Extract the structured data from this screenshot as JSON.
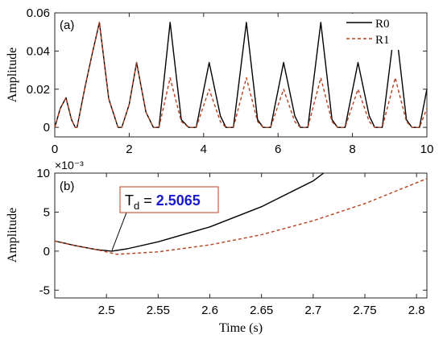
{
  "chart_data": [
    {
      "panel_label": "(a)",
      "type": "line",
      "xlabel": "",
      "ylabel": "Amplitude",
      "xlim": [
        0,
        10
      ],
      "ylim": [
        -0.005,
        0.06
      ],
      "xticks": [
        "0",
        "2",
        "4",
        "6",
        "8",
        "10"
      ],
      "yticks": [
        "0",
        "0.02",
        "0.04",
        "0.06"
      ],
      "legend": {
        "position": "top-right",
        "entries": [
          "R0",
          "R1"
        ]
      },
      "series": [
        {
          "name": "R0",
          "color": "#000000",
          "style": "solid",
          "x": [
            0,
            0.15,
            0.3,
            0.45,
            0.55,
            0.6,
            0.8,
            1.0,
            1.2,
            1.45,
            1.7,
            1.8,
            2.0,
            2.2,
            2.45,
            2.65,
            2.8,
            3.1,
            3.4,
            3.6,
            3.8,
            4.15,
            4.45,
            4.6,
            4.8,
            5.15,
            5.45,
            5.6,
            5.8,
            6.15,
            6.45,
            6.6,
            6.8,
            7.15,
            7.45,
            7.6,
            7.8,
            8.15,
            8.45,
            8.6,
            8.8,
            9.15,
            9.45,
            9.6,
            9.8,
            10.0
          ],
          "y": [
            0.0,
            0.01,
            0.0155,
            0.004,
            0.0,
            0.0,
            0.02,
            0.038,
            0.055,
            0.015,
            0.0,
            0.0,
            0.012,
            0.034,
            0.008,
            0.0,
            0.0,
            0.055,
            0.004,
            0.0,
            0.0,
            0.034,
            0.006,
            0.0,
            0.0,
            0.055,
            0.004,
            0.0,
            0.0,
            0.034,
            0.006,
            0.0,
            0.0,
            0.055,
            0.004,
            0.0,
            0.0,
            0.034,
            0.006,
            0.0,
            0.0,
            0.055,
            0.004,
            0.0,
            0.0,
            0.02
          ]
        },
        {
          "name": "R1",
          "color": "#b5401f",
          "style": "dashed",
          "x": [
            0,
            0.15,
            0.3,
            0.45,
            0.55,
            0.6,
            0.8,
            1.0,
            1.2,
            1.45,
            1.7,
            1.8,
            2.0,
            2.2,
            2.45,
            2.65,
            2.8,
            3.1,
            3.4,
            3.6,
            3.8,
            4.15,
            4.45,
            4.6,
            4.8,
            5.15,
            5.45,
            5.6,
            5.8,
            6.15,
            6.45,
            6.6,
            6.8,
            7.15,
            7.45,
            7.6,
            7.8,
            8.15,
            8.45,
            8.6,
            8.8,
            9.15,
            9.45,
            9.6,
            9.8,
            10.0
          ],
          "y": [
            0.0,
            0.01,
            0.0155,
            0.004,
            0.0,
            0.0,
            0.02,
            0.038,
            0.055,
            0.015,
            0.0,
            0.0,
            0.012,
            0.034,
            0.008,
            0.0,
            0.0,
            0.026,
            0.003,
            0.0,
            0.0,
            0.02,
            0.003,
            0.0,
            0.0,
            0.026,
            0.003,
            0.0,
            0.0,
            0.02,
            0.003,
            0.0,
            0.0,
            0.026,
            0.003,
            0.0,
            0.0,
            0.02,
            0.003,
            0.0,
            0.0,
            0.026,
            0.003,
            0.0,
            0.0,
            0.01
          ]
        }
      ]
    },
    {
      "panel_label": "(b)",
      "type": "line",
      "xlabel": "Time (s)",
      "ylabel": "Amplitude",
      "y_multiplier": "×10⁻³",
      "xlim": [
        2.45,
        2.81
      ],
      "ylim": [
        -6,
        10
      ],
      "xticks": [
        "2.5",
        "2.55",
        "2.6",
        "2.65",
        "2.7",
        "2.75",
        "2.8"
      ],
      "yticks": [
        "-5",
        "0",
        "5",
        "10"
      ],
      "annotation": {
        "text_prefix": "T",
        "text_sub": "d",
        "text_eq": " = ",
        "value": "2.5065",
        "value_color": "#1a1acc"
      },
      "series": [
        {
          "name": "R0",
          "color": "#000000",
          "style": "solid",
          "x": [
            2.45,
            2.47,
            2.49,
            2.505,
            2.52,
            2.55,
            2.6,
            2.65,
            2.7,
            2.71
          ],
          "y": [
            1.3,
            0.7,
            0.2,
            0.0,
            0.3,
            1.2,
            3.1,
            5.7,
            9.0,
            10.0
          ]
        },
        {
          "name": "R1",
          "color": "#b5401f",
          "style": "dashed",
          "x": [
            2.45,
            2.47,
            2.49,
            2.51,
            2.55,
            2.6,
            2.65,
            2.7,
            2.75,
            2.81
          ],
          "y": [
            1.3,
            0.7,
            0.2,
            -0.4,
            -0.1,
            0.8,
            2.1,
            3.9,
            6.1,
            9.3
          ]
        }
      ]
    }
  ]
}
